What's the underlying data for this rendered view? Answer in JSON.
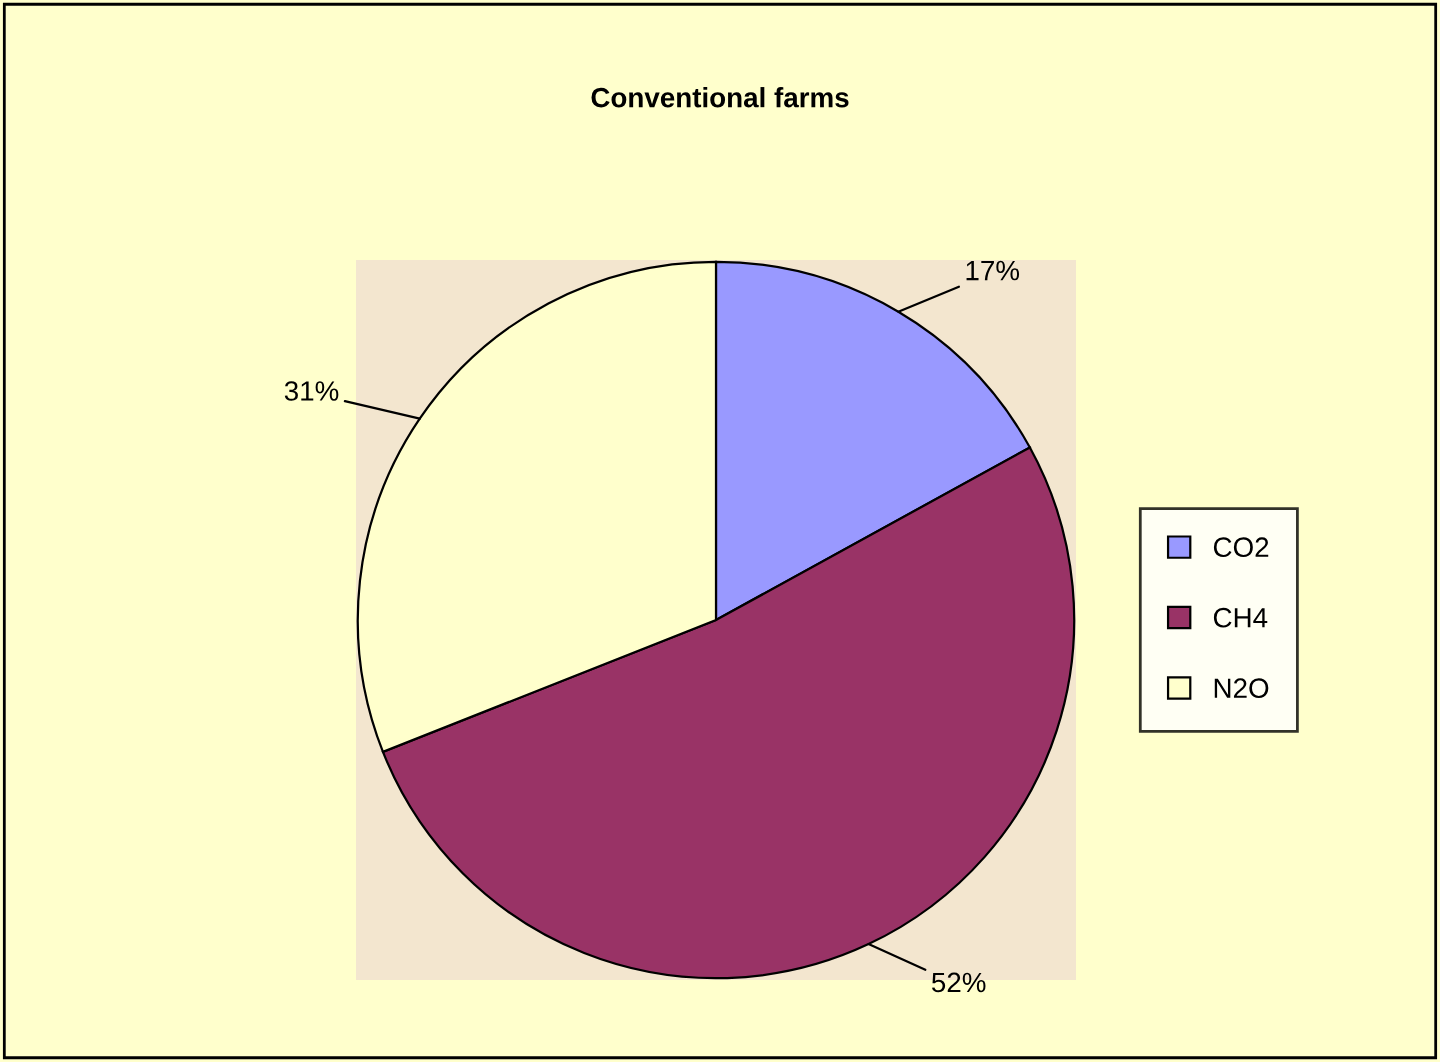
{
  "chart_data": {
    "type": "pie",
    "title": "Conventional farms",
    "categories": [
      "CO2",
      "CH4",
      "N2O"
    ],
    "values": [
      17,
      52,
      31
    ],
    "value_labels": [
      "17%",
      "52%",
      "31%"
    ],
    "colors": [
      "#9999ff",
      "#993366",
      "#ffffcc"
    ],
    "legend": "right"
  }
}
